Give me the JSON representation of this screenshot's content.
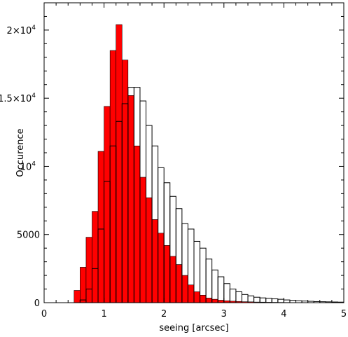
{
  "chart_data": {
    "type": "bar",
    "title": "",
    "xlabel": "seeing [arcsec]",
    "ylabel": "Occurence",
    "xlim": [
      0,
      5
    ],
    "ylim": [
      0,
      22000
    ],
    "bin_width": 0.1,
    "x_ticks": [
      {
        "value": 0,
        "label": "0"
      },
      {
        "value": 1,
        "label": "1"
      },
      {
        "value": 2,
        "label": "2"
      },
      {
        "value": 3,
        "label": "3"
      },
      {
        "value": 4,
        "label": "4"
      },
      {
        "value": 5,
        "label": "5"
      }
    ],
    "y_ticks": [
      {
        "value": 0,
        "label": "0",
        "exp": ""
      },
      {
        "value": 5000,
        "label": "5000",
        "exp": ""
      },
      {
        "value": 10000,
        "label": "10",
        "exp": "4"
      },
      {
        "value": 15000,
        "label": "1.5×10",
        "exp": "4"
      },
      {
        "value": 20000,
        "label": "2×10",
        "exp": "4"
      }
    ],
    "series": [
      {
        "style": "filled",
        "color": "#ff0000",
        "bin_starts": [
          0.5,
          0.6,
          0.7,
          0.8,
          0.9,
          1.0,
          1.1,
          1.2,
          1.3,
          1.4,
          1.5,
          1.6,
          1.7,
          1.8,
          1.9,
          2.0,
          2.1,
          2.2,
          2.3,
          2.4,
          2.5,
          2.6,
          2.7,
          2.8,
          2.9,
          3.0,
          3.1,
          3.2,
          3.3,
          3.4,
          3.5,
          3.6,
          3.7,
          3.8,
          3.9,
          4.0,
          4.1,
          4.2
        ],
        "values": [
          900,
          2600,
          4800,
          6700,
          11100,
          14400,
          18500,
          20400,
          17800,
          15200,
          11500,
          9200,
          7700,
          6100,
          5100,
          4200,
          3400,
          2800,
          2000,
          1300,
          800,
          550,
          340,
          250,
          180,
          140,
          110,
          90,
          70,
          60,
          45,
          40,
          30,
          25,
          20,
          15,
          10,
          8
        ]
      },
      {
        "style": "outline",
        "color": "#000000",
        "bin_starts": [
          0.6,
          0.7,
          0.8,
          0.9,
          1.0,
          1.1,
          1.2,
          1.3,
          1.4,
          1.5,
          1.6,
          1.7,
          1.8,
          1.9,
          2.0,
          2.1,
          2.2,
          2.3,
          2.4,
          2.5,
          2.6,
          2.7,
          2.8,
          2.9,
          3.0,
          3.1,
          3.2,
          3.3,
          3.4,
          3.5,
          3.6,
          3.7,
          3.8,
          3.9,
          4.0,
          4.1,
          4.2,
          4.3,
          4.4,
          4.5,
          4.6,
          4.7,
          4.8,
          4.9
        ],
        "values": [
          200,
          1000,
          2500,
          5400,
          8900,
          11500,
          13300,
          14600,
          15800,
          15800,
          14800,
          13000,
          11500,
          9900,
          8800,
          7800,
          6900,
          5800,
          5400,
          4500,
          4000,
          3200,
          2400,
          1900,
          1400,
          1000,
          800,
          600,
          500,
          400,
          350,
          320,
          280,
          250,
          200,
          170,
          140,
          120,
          100,
          80,
          70,
          60,
          50,
          40
        ]
      }
    ]
  }
}
